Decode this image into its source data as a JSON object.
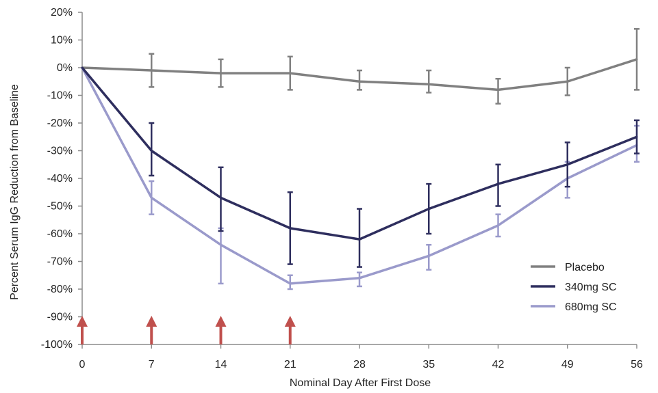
{
  "chart_data": {
    "type": "line",
    "title": "",
    "xlabel": "Nominal Day After First Dose",
    "ylabel": "Percent Serum IgG Reduction from Baseline",
    "x": [
      0,
      7,
      14,
      21,
      28,
      35,
      42,
      49,
      56
    ],
    "x_tick_labels": [
      "0",
      "7",
      "14",
      "21",
      "28",
      "35",
      "42",
      "49",
      "56"
    ],
    "xlim": [
      0,
      56
    ],
    "ylim": [
      -100,
      20
    ],
    "y_ticks": [
      20,
      10,
      0,
      -10,
      -20,
      -30,
      -40,
      -50,
      -60,
      -70,
      -80,
      -90,
      -100
    ],
    "y_tick_labels": [
      "20%",
      "10%",
      "0%",
      "-10%",
      "-20%",
      "-30%",
      "-40%",
      "-50%",
      "-60%",
      "-70%",
      "-80%",
      "-90%",
      "-100%"
    ],
    "grid": false,
    "legend_position": "bottom-right",
    "series": [
      {
        "name": "Placebo",
        "color": "#808080",
        "values": [
          0,
          -1,
          -2,
          -2,
          -5,
          -6,
          -8,
          -5,
          3
        ],
        "error_low": [
          0,
          -7,
          -7,
          -8,
          -8,
          -9,
          -13,
          -10,
          -8
        ],
        "error_high": [
          0,
          5,
          3,
          4,
          -1,
          -1,
          -4,
          0,
          14
        ]
      },
      {
        "name": "340mg SC",
        "color": "#2e2e5e",
        "values": [
          0,
          -30,
          -47,
          -58,
          -62,
          -51,
          -42,
          -35,
          -25
        ],
        "error_low": [
          0,
          -39,
          -59,
          -71,
          -72,
          -60,
          -50,
          -43,
          -31
        ],
        "error_high": [
          0,
          -20,
          -36,
          -45,
          -51,
          -42,
          -35,
          -27,
          -19
        ]
      },
      {
        "name": "680mg SC",
        "color": "#9a9acb",
        "values": [
          0,
          -47,
          -64,
          -78,
          -76,
          -68,
          -57,
          -40,
          -28
        ],
        "error_low": [
          0,
          -53,
          -78,
          -80,
          -79,
          -73,
          -61,
          -47,
          -34
        ],
        "error_high": [
          0,
          -41,
          -58,
          -75,
          -74,
          -64,
          -53,
          -34,
          -21
        ]
      }
    ],
    "dose_markers": {
      "days": [
        0,
        7,
        14,
        21
      ],
      "color": "#c0504d",
      "icon": "up-arrow-icon"
    }
  }
}
